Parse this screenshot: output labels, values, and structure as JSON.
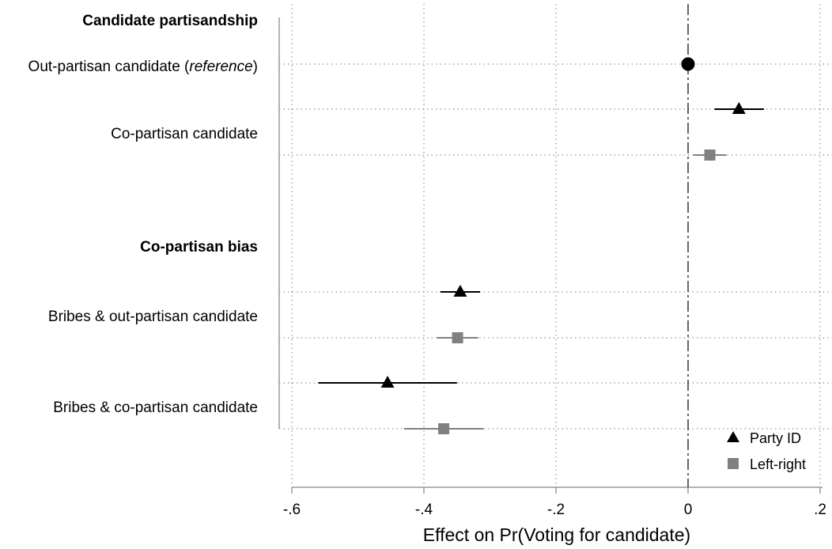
{
  "chart_data": {
    "type": "scatter",
    "subtype": "coefficient-plot",
    "xlabel": "Effect on Pr(Voting for candidate)",
    "xlim": [
      -0.6,
      0.2
    ],
    "x_ticks": [
      {
        "value": -0.6,
        "label": "-.6"
      },
      {
        "value": -0.4,
        "label": "-.4"
      },
      {
        "value": -0.2,
        "label": "-.2"
      },
      {
        "value": 0,
        "label": "0"
      },
      {
        "value": 0.2,
        "label": ".2"
      }
    ],
    "grid": true,
    "reference_line_x": 0,
    "legend_position": "bottom-right",
    "groups": [
      {
        "header": "Candidate partisandship",
        "rows": [
          {
            "label_plain": "Out-partisan candidate (",
            "label_italic": "reference",
            "label_close": ")"
          },
          {
            "label_plain": "Co-partisan candidate"
          }
        ]
      },
      {
        "header": "Co-partisan bias",
        "rows": [
          {
            "label_plain": "Bribes & out-partisan candidate"
          },
          {
            "label_plain": "Bribes & co-partisan candidate"
          }
        ]
      }
    ],
    "series": [
      {
        "name": "Party ID",
        "marker": "triangle",
        "color": "#000000",
        "points": [
          {
            "row": "Co-partisan candidate",
            "estimate": 0.077,
            "ci": [
              0.04,
              0.115
            ]
          },
          {
            "row": "Bribes & out-partisan candidate",
            "estimate": -0.345,
            "ci": [
              -0.375,
              -0.315
            ]
          },
          {
            "row": "Bribes & co-partisan candidate",
            "estimate": -0.455,
            "ci": [
              -0.56,
              -0.35
            ]
          }
        ]
      },
      {
        "name": "Left-right",
        "marker": "square",
        "color": "#808080",
        "points": [
          {
            "row": "Co-partisan candidate",
            "estimate": 0.033,
            "ci": [
              0.008,
              0.058
            ]
          },
          {
            "row": "Bribes & out-partisan candidate",
            "estimate": -0.349,
            "ci": [
              -0.38,
              -0.318
            ]
          },
          {
            "row": "Bribes & co-partisan candidate",
            "estimate": -0.37,
            "ci": [
              -0.43,
              -0.31
            ]
          }
        ]
      }
    ],
    "reference_point": {
      "row": "Out-partisan candidate (reference)",
      "estimate": 0,
      "marker": "circle",
      "color": "#000000"
    }
  }
}
